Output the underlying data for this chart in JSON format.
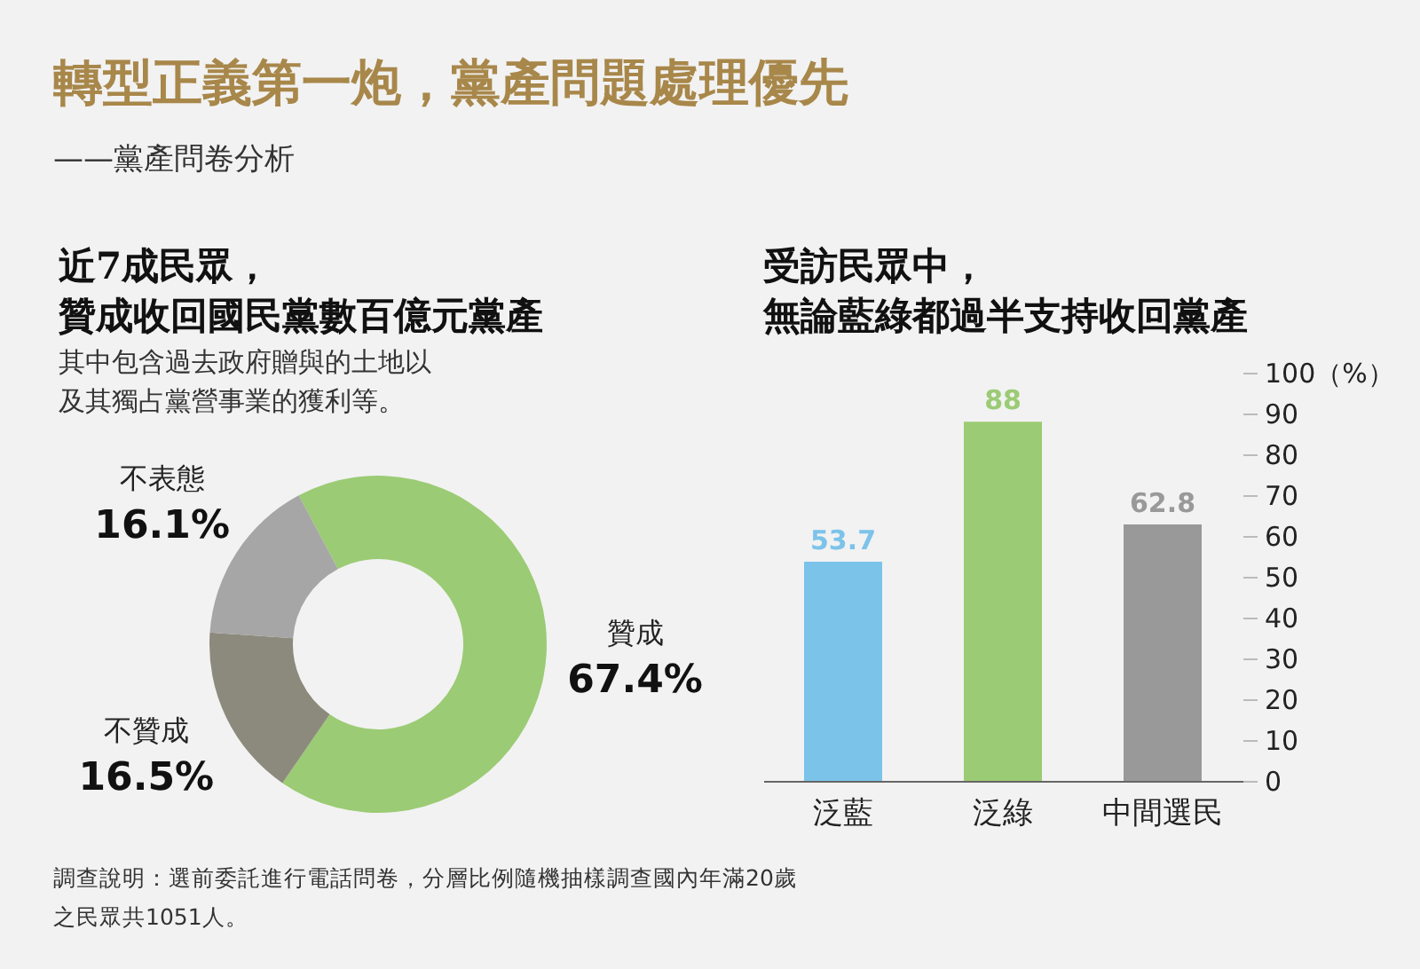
{
  "chart_data": [
    {
      "type": "other",
      "title": "轉型正義第一炮，黨產問題處理優先",
      "subtitle": "——黨產問卷分析",
      "annotations": [
        "調查說明：選前委託進行電話問卷，分層比例隨機抽樣調查國內年滿20歲之民眾共1051人。"
      ]
    },
    {
      "type": "donut",
      "title": "近7成民眾，贊成收回國民黨數百億元黨產",
      "subtitle": "其中包含過去政府贈與的土地以及其獨占黨營事業的獲利等。",
      "categories": [
        "贊成",
        "不贊成",
        "不表態"
      ],
      "values": [
        67.4,
        16.5,
        16.1
      ],
      "colors": [
        "#9bcb74",
        "#8c8a7c",
        "#a6a6a6"
      ],
      "value_labels": [
        "67.4%",
        "16.5%",
        "16.1%"
      ]
    },
    {
      "type": "bar",
      "title": "受訪民眾中，無論藍綠都過半支持收回黨產",
      "categories": [
        "泛藍",
        "泛綠",
        "中間選民"
      ],
      "values": [
        53.7,
        88,
        62.8
      ],
      "colors": [
        "#7cc3ea",
        "#9bcb74",
        "#999999"
      ],
      "ylim": [
        0,
        100
      ],
      "yticks": [
        0,
        10,
        20,
        30,
        40,
        50,
        60,
        70,
        80,
        90,
        {
          "value": 100,
          "label": "100（%）"
        }
      ],
      "data_labels": true
    }
  ]
}
